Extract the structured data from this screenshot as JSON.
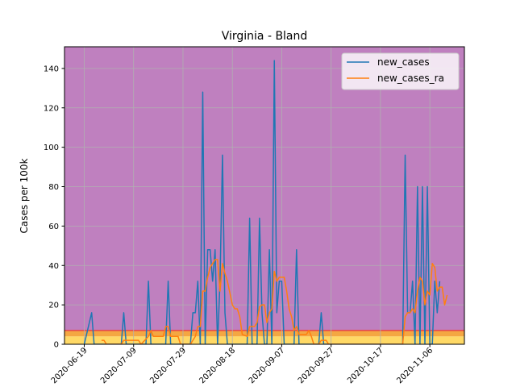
{
  "chart_data": {
    "type": "line",
    "title": "Virginia - Bland",
    "xlabel": "",
    "ylabel": "Cases per 100k",
    "x_ticks": [
      "2020-06-19",
      "2020-07-09",
      "2020-07-29",
      "2020-08-18",
      "2020-09-07",
      "2020-09-27",
      "2020-10-17",
      "2020-11-06"
    ],
    "x_range": [
      "2020-06-11",
      "2020-11-20"
    ],
    "ylim": [
      0,
      151
    ],
    "y_ticks": [
      0,
      20,
      40,
      60,
      80,
      100,
      120,
      140
    ],
    "grid": true,
    "legend_position": "upper right",
    "background_bands": [
      {
        "from": 0,
        "to": 4,
        "color": "#ffd966"
      },
      {
        "from": 4,
        "to": 7,
        "color": "#f4a742"
      },
      {
        "from": 7,
        "to": 151,
        "color": "#bf80bf"
      }
    ],
    "risk_line": {
      "y": 7,
      "color": "#e8434a"
    },
    "series": [
      {
        "name": "new_cases",
        "color": "#1f77b4",
        "points": [
          [
            "2020-06-19",
            0
          ],
          [
            "2020-06-22",
            16
          ],
          [
            "2020-06-23",
            0
          ],
          [
            "2020-07-04",
            0
          ],
          [
            "2020-07-05",
            16
          ],
          [
            "2020-07-06",
            0
          ],
          [
            "2020-07-14",
            0
          ],
          [
            "2020-07-15",
            32
          ],
          [
            "2020-07-16",
            0
          ],
          [
            "2020-07-22",
            0
          ],
          [
            "2020-07-23",
            32
          ],
          [
            "2020-07-24",
            0
          ],
          [
            "2020-08-01",
            0
          ],
          [
            "2020-08-02",
            16
          ],
          [
            "2020-08-03",
            16
          ],
          [
            "2020-08-04",
            32
          ],
          [
            "2020-08-05",
            0
          ],
          [
            "2020-08-06",
            128
          ],
          [
            "2020-08-07",
            0
          ],
          [
            "2020-08-08",
            48
          ],
          [
            "2020-08-09",
            48
          ],
          [
            "2020-08-10",
            32
          ],
          [
            "2020-08-11",
            48
          ],
          [
            "2020-08-12",
            0
          ],
          [
            "2020-08-13",
            32
          ],
          [
            "2020-08-14",
            96
          ],
          [
            "2020-08-15",
            16
          ],
          [
            "2020-08-16",
            0
          ],
          [
            "2020-08-24",
            0
          ],
          [
            "2020-08-25",
            64
          ],
          [
            "2020-08-26",
            0
          ],
          [
            "2020-08-28",
            0
          ],
          [
            "2020-08-29",
            64
          ],
          [
            "2020-08-30",
            16
          ],
          [
            "2020-08-31",
            0
          ],
          [
            "2020-09-01",
            0
          ],
          [
            "2020-09-02",
            48
          ],
          [
            "2020-09-03",
            0
          ],
          [
            "2020-09-04",
            144
          ],
          [
            "2020-09-05",
            16
          ],
          [
            "2020-09-06",
            32
          ],
          [
            "2020-09-07",
            32
          ],
          [
            "2020-09-08",
            0
          ],
          [
            "2020-09-12",
            0
          ],
          [
            "2020-09-13",
            48
          ],
          [
            "2020-09-14",
            0
          ],
          [
            "2020-09-18",
            0
          ],
          [
            "2020-09-22",
            0
          ],
          [
            "2020-09-23",
            16
          ],
          [
            "2020-09-24",
            0
          ],
          [
            "2020-10-26",
            0
          ],
          [
            "2020-10-27",
            96
          ],
          [
            "2020-10-28",
            16
          ],
          [
            "2020-10-29",
            16
          ],
          [
            "2020-10-30",
            32
          ],
          [
            "2020-10-31",
            0
          ],
          [
            "2020-11-01",
            80
          ],
          [
            "2020-11-02",
            0
          ],
          [
            "2020-11-03",
            80
          ],
          [
            "2020-11-04",
            0
          ],
          [
            "2020-11-05",
            80
          ],
          [
            "2020-11-06",
            0
          ],
          [
            "2020-11-07",
            0
          ],
          [
            "2020-11-08",
            32
          ],
          [
            "2020-11-09",
            16
          ],
          [
            "2020-11-10",
            32
          ]
        ]
      },
      {
        "name": "new_cases_ra",
        "color": "#ff7f0e",
        "points": [
          [
            "2020-06-26",
            2
          ],
          [
            "2020-06-27",
            2
          ],
          [
            "2020-06-28",
            0
          ],
          [
            "2020-07-04",
            0
          ],
          [
            "2020-07-05",
            2
          ],
          [
            "2020-07-06",
            2
          ],
          [
            "2020-07-11",
            2
          ],
          [
            "2020-07-12",
            0
          ],
          [
            "2020-07-15",
            4
          ],
          [
            "2020-07-16",
            7
          ],
          [
            "2020-07-17",
            4
          ],
          [
            "2020-07-21",
            4
          ],
          [
            "2020-07-22",
            9
          ],
          [
            "2020-07-23",
            9
          ],
          [
            "2020-07-24",
            4
          ],
          [
            "2020-07-26",
            4
          ],
          [
            "2020-07-27",
            4
          ],
          [
            "2020-07-28",
            0
          ],
          [
            "2020-08-01",
            0
          ],
          [
            "2020-08-02",
            2
          ],
          [
            "2020-08-03",
            4
          ],
          [
            "2020-08-04",
            9
          ],
          [
            "2020-08-05",
            9
          ],
          [
            "2020-08-06",
            27
          ],
          [
            "2020-08-07",
            27
          ],
          [
            "2020-08-08",
            34
          ],
          [
            "2020-08-09",
            39
          ],
          [
            "2020-08-10",
            41
          ],
          [
            "2020-08-11",
            43
          ],
          [
            "2020-08-12",
            43
          ],
          [
            "2020-08-13",
            27
          ],
          [
            "2020-08-14",
            41
          ],
          [
            "2020-08-15",
            36
          ],
          [
            "2020-08-16",
            32
          ],
          [
            "2020-08-18",
            20
          ],
          [
            "2020-08-19",
            18
          ],
          [
            "2020-08-20",
            18
          ],
          [
            "2020-08-21",
            14
          ],
          [
            "2020-08-22",
            5
          ],
          [
            "2020-08-24",
            4
          ],
          [
            "2020-08-25",
            9
          ],
          [
            "2020-08-26",
            9
          ],
          [
            "2020-08-27",
            9
          ],
          [
            "2020-08-28",
            11
          ],
          [
            "2020-08-29",
            19
          ],
          [
            "2020-08-30",
            20
          ],
          [
            "2020-08-31",
            20
          ],
          [
            "2020-09-01",
            11
          ],
          [
            "2020-09-02",
            16
          ],
          [
            "2020-09-03",
            18
          ],
          [
            "2020-09-04",
            37
          ],
          [
            "2020-09-05",
            32
          ],
          [
            "2020-09-06",
            34
          ],
          [
            "2020-09-07",
            34
          ],
          [
            "2020-09-08",
            34
          ],
          [
            "2020-09-09",
            27
          ],
          [
            "2020-09-10",
            18
          ],
          [
            "2020-09-11",
            14
          ],
          [
            "2020-09-12",
            7
          ],
          [
            "2020-09-13",
            9
          ],
          [
            "2020-09-14",
            5
          ],
          [
            "2020-09-16",
            5
          ],
          [
            "2020-09-17",
            5
          ],
          [
            "2020-09-18",
            7
          ],
          [
            "2020-09-19",
            4
          ],
          [
            "2020-09-20",
            0
          ],
          [
            "2020-09-22",
            0
          ],
          [
            "2020-09-23",
            2
          ],
          [
            "2020-09-24",
            2
          ],
          [
            "2020-09-25",
            2
          ],
          [
            "2020-09-26",
            0
          ],
          [
            "2020-10-26",
            0
          ],
          [
            "2020-10-27",
            14
          ],
          [
            "2020-10-28",
            16
          ],
          [
            "2020-10-29",
            16
          ],
          [
            "2020-10-30",
            18
          ],
          [
            "2020-10-31",
            16
          ],
          [
            "2020-11-01",
            27
          ],
          [
            "2020-11-02",
            34
          ],
          [
            "2020-11-03",
            32
          ],
          [
            "2020-11-04",
            20
          ],
          [
            "2020-11-05",
            27
          ],
          [
            "2020-11-06",
            25
          ],
          [
            "2020-11-07",
            41
          ],
          [
            "2020-11-08",
            39
          ],
          [
            "2020-11-09",
            27
          ],
          [
            "2020-11-10",
            29
          ],
          [
            "2020-11-11",
            29
          ],
          [
            "2020-11-12",
            20
          ],
          [
            "2020-11-13",
            25
          ]
        ]
      }
    ]
  }
}
